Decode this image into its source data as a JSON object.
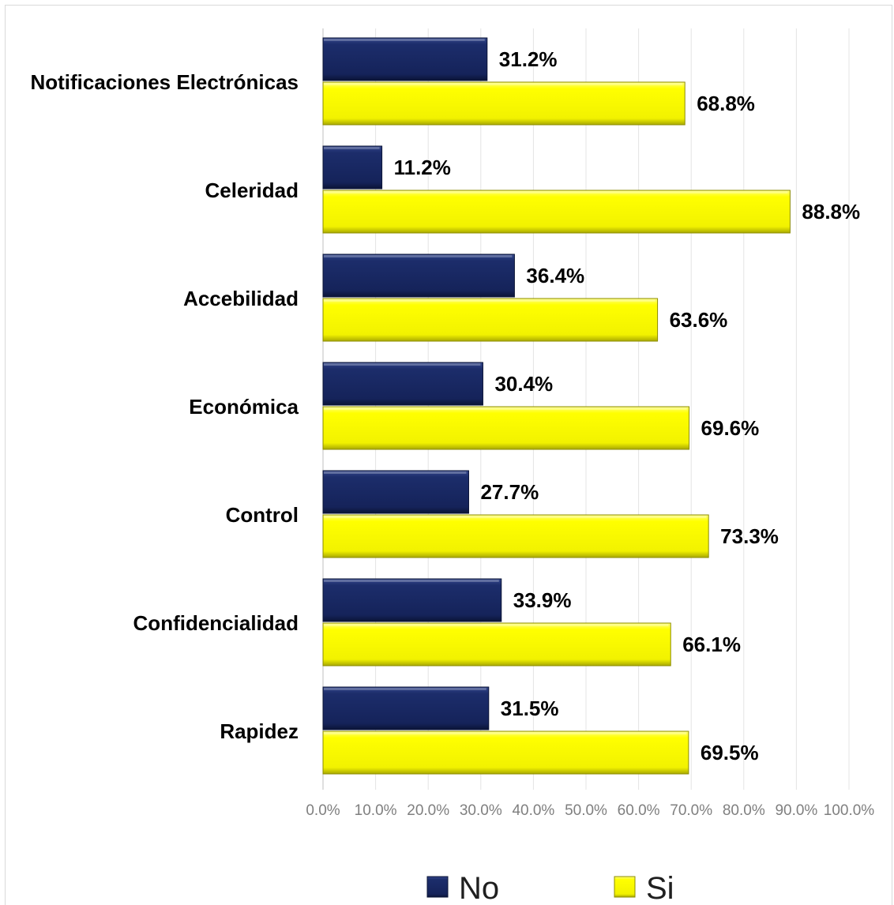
{
  "chart_data": {
    "type": "bar",
    "orientation": "horizontal",
    "categories": [
      "Notificaciones Electrónicas",
      "Celeridad",
      "Accebilidad",
      "Económica",
      "Control",
      "Confidencialidad",
      "Rapidez"
    ],
    "series": [
      {
        "name": "No",
        "color": "#1c2d6b",
        "values": [
          31.2,
          11.2,
          36.4,
          30.4,
          27.7,
          33.9,
          31.5
        ]
      },
      {
        "name": "Si",
        "color": "#ffff00",
        "values": [
          68.8,
          88.8,
          63.6,
          69.6,
          73.3,
          66.1,
          69.5
        ]
      }
    ],
    "x_ticks": [
      "0.0%",
      "10.0%",
      "20.0%",
      "30.0%",
      "40.0%",
      "50.0%",
      "60.0%",
      "70.0%",
      "80.0%",
      "90.0%",
      "100.0%"
    ],
    "xlim": [
      0,
      100
    ],
    "value_format": "percent-1-decimal",
    "grid": "vertical",
    "legend_position": "bottom"
  }
}
